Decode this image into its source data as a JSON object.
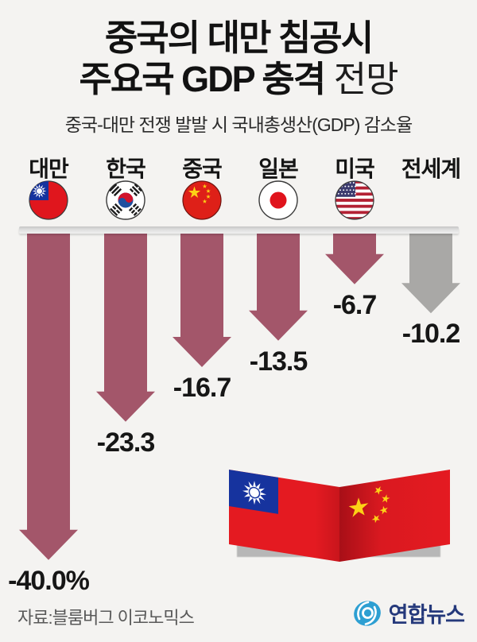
{
  "header": {
    "title_line1": "중국의 대만 침공시",
    "title_line2_strong": "주요국 GDP 충격",
    "title_line2_light": " 전망",
    "subtitle": "중국-대만 전쟁 발발 시 국내총생산(GDP) 감소율"
  },
  "chart_data": {
    "type": "bar",
    "variant": "downward-arrows",
    "title": "중국의 대만 침공시 주요국 GDP 충격 전망",
    "subtitle": "중국-대만 전쟁 발발 시 국내총생산(GDP) 감소율",
    "unit": "% GDP decline",
    "categories": [
      "대만",
      "한국",
      "중국",
      "일본",
      "미국",
      "전세계"
    ],
    "values": [
      -40.0,
      -23.3,
      -16.7,
      -13.5,
      -6.7,
      -10.2
    ],
    "value_labels": [
      "-40.0%",
      "-23.3",
      "-16.7",
      "-13.5",
      "-6.7",
      "-10.2"
    ],
    "ids": [
      "taiwan",
      "korea",
      "china",
      "japan",
      "usa",
      "world"
    ],
    "flag_icons": [
      "taiwan-flag-icon",
      "south-korea-flag-icon",
      "china-flag-icon",
      "japan-flag-icon",
      "usa-flag-icon",
      null
    ],
    "bar_colors": [
      "#a3566a",
      "#a3566a",
      "#a3566a",
      "#a3566a",
      "#a3566a",
      "#a9a8a6"
    ],
    "baseline": 0,
    "grid": false,
    "legend": false
  },
  "banner": {
    "left_flag": "taiwan",
    "right_flag": "china"
  },
  "footer": {
    "source": "자료:블룸버그 이코노믹스",
    "logo_text": "연합뉴스",
    "logo_icon": "yonhap-swirl-icon"
  },
  "colors": {
    "background": "#f4f3f1",
    "arrow_country": "#a3566a",
    "arrow_world": "#a9a8a6",
    "title_text": "#121212",
    "yonhap_blue": "#2d9fd2",
    "yonhap_navy": "#25397b"
  }
}
